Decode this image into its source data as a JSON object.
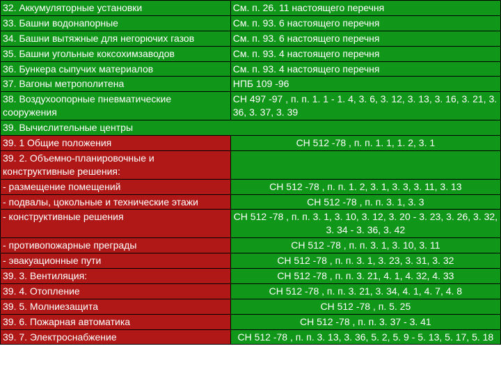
{
  "colors": {
    "green": "#109618",
    "red": "#b01818",
    "text": "#ffffff",
    "border": "#000000"
  },
  "rows": [
    {
      "c1_class": "green col1",
      "c1": "32. Аккумуляторные установки",
      "c2_class": "green col2",
      "c2": "См. п. 26. 11 настоящего перечня"
    },
    {
      "c1_class": "green col1",
      "c1": "33. Башни водонапорные",
      "c2_class": "green col2",
      "c2": "См. п. 93. 6 настоящего перечня"
    },
    {
      "c1_class": "green col1",
      "c1": "34. Башни вытяжные для негорючих газов",
      "c2_class": "green col2",
      "c2": "См. п. 93. 6 настоящего перечня"
    },
    {
      "c1_class": "green col1",
      "c1": "35. Башни угольные коксохимзаводов",
      "c2_class": "green col2",
      "c2": "См. п. 93. 4 настоящего перечня"
    },
    {
      "c1_class": "green col1",
      "c1": "36. Бункера сыпучих материалов",
      "c2_class": "green col2",
      "c2": "См. п. 93. 4 настоящего перечня"
    },
    {
      "c1_class": "green col1",
      "c1": "37. Вагоны метрополитена",
      "c2_class": "green col2",
      "c2": "НПБ 109 -96"
    },
    {
      "c1_class": "green col1",
      "c1": "38. Воздухоопорные пневматические сооружения",
      "c2_class": "green col2",
      "c2": "СН 497 -97 , п. п. 1. 1 - 1. 4, 3. 6, 3. 12, 3. 13, 3. 16, 3. 21, 3. 36, 3. 37, 3. 39"
    },
    {
      "span": true,
      "c1_class": "green span2",
      "c1": "39. Вычислительные центры"
    },
    {
      "c1_class": "red col1",
      "c1": "39. 1 Общие положения",
      "c2_class": "green col2 center",
      "c2": "СН 512 -78 , п. п. 1. 1, 1. 2, 3. 1"
    },
    {
      "c1_class": "red col1",
      "c1": "39. 2. Объемно-планировочные и конструктивные решения:",
      "c2_class": "green col2 center",
      "c2": ""
    },
    {
      "c1_class": "red col1",
      "c1": "- размещение помещений",
      "c2_class": "green col2 center",
      "c2": "СН 512 -78 , п. п. 1. 2, 3. 1, 3. 3, 3. 11, 3. 13"
    },
    {
      "c1_class": "red col1",
      "c1": "- подвалы, цокольные и технические этажи",
      "c2_class": "green col2 center",
      "c2": "СН 512 -78 , п. п. 3. 1, 3. 3"
    },
    {
      "c1_class": "red col1",
      "c1": "- конструктивные решения",
      "c2_class": "green col2 center",
      "c2": "СН 512 -78 , п. п. 3. 1, 3. 10, 3. 12, 3. 20 - 3. 23, 3. 26, 3. 32, 3. 34 - 3. 36, 3. 42"
    },
    {
      "c1_class": "red col1",
      "c1": "- противопожарные преграды",
      "c2_class": "green col2 center",
      "c2": "СН 512 -78 , п. п. 3. 1, 3. 10, 3. 11"
    },
    {
      "c1_class": "red col1",
      "c1": "- эвакуационные пути",
      "c2_class": "green col2 center",
      "c2": "СН 512 -78 , п. п. 3. 1, 3. 23, 3. 31, 3. 32"
    },
    {
      "c1_class": "red col1",
      "c1": "39. 3. Вентиляция:",
      "c2_class": "green col2 center",
      "c2": "СН 512 -78 , п. п. 3. 21, 4. 1, 4. 32, 4. 33"
    },
    {
      "c1_class": "red col1",
      "c1": "39. 4. Отопление",
      "c2_class": "green col2 center",
      "c2": "СН 512 -78 , п. п. 3. 21, 3. 34, 4. 1, 4. 7, 4. 8"
    },
    {
      "c1_class": "red col1",
      "c1": "39. 5. Молниезащита",
      "c2_class": "green col2 center",
      "c2": "СН 512 -78 , п. 5. 25"
    },
    {
      "c1_class": "red col1",
      "c1": "39. 6. Пожарная автоматика",
      "c2_class": "green col2 center",
      "c2": "СН 512 -78 , п. п. 3. 37 - 3. 41"
    },
    {
      "c1_class": "red col1",
      "c1": "39. 7. Электроснабжение",
      "c2_class": "green col2 center",
      "c2": "СН 512 -78 , п. п. 3. 13, 3. 36, 5. 2, 5. 9 - 5. 13, 5. 17, 5. 18"
    }
  ]
}
